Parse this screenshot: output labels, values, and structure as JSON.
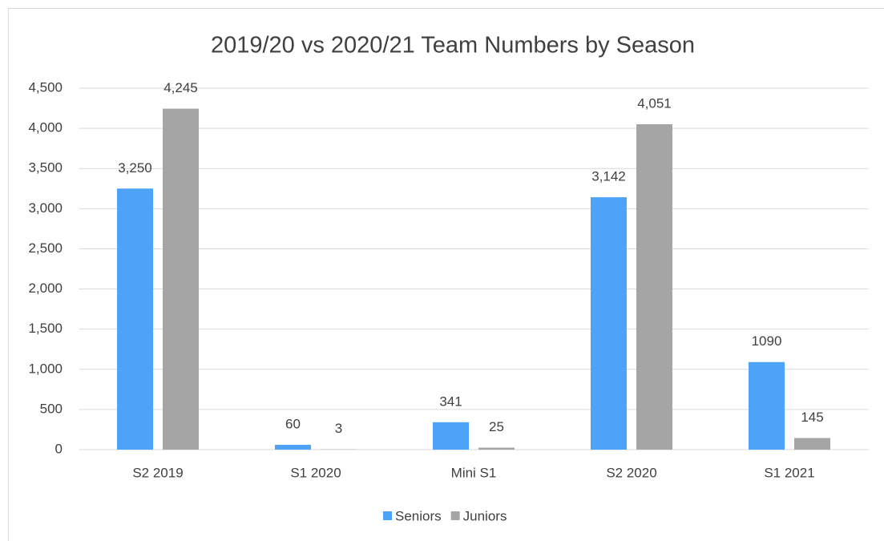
{
  "chart_data": {
    "type": "bar",
    "title": "2019/20 vs 2020/21 Team Numbers by Season",
    "categories": [
      "S2 2019",
      "S1 2020",
      "Mini S1",
      "S2 2020",
      "S1 2021"
    ],
    "series": [
      {
        "name": "Seniors",
        "color": "#4da3f7",
        "values": [
          3250,
          60,
          341,
          3142,
          1090
        ],
        "value_labels": [
          "3,250",
          "60",
          "341",
          "3,142",
          "1090"
        ]
      },
      {
        "name": "Juniors",
        "color": "#a5a5a5",
        "values": [
          4245,
          3,
          25,
          4051,
          145
        ],
        "value_labels": [
          "4,245",
          "3",
          "25",
          "4,051",
          "145"
        ]
      }
    ],
    "ylim": [
      0,
      4500
    ],
    "yticks": [
      0,
      500,
      {
        "value": 1000,
        "label": "1,000"
      },
      {
        "value": 1500,
        "label": "1,500"
      },
      {
        "value": 2000,
        "label": "2,000"
      },
      {
        "value": 2500,
        "label": "2,500"
      },
      {
        "value": 3000,
        "label": "3,000"
      },
      {
        "value": 3500,
        "label": "3,500"
      },
      {
        "value": 4000,
        "label": "4,000"
      },
      {
        "value": 4500,
        "label": "4,500"
      }
    ],
    "grid": true,
    "legend": "bottom"
  }
}
